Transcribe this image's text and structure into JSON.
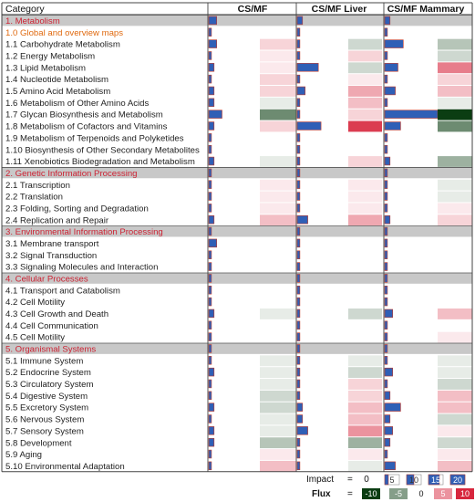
{
  "chart_data": {
    "type": "heatmap",
    "header": {
      "category": "Category",
      "groups": [
        "CS/MF",
        "CS/MF Liver",
        "CS/MF Mammary"
      ]
    },
    "rows": [
      {
        "label": "1. Metabolism",
        "section": true,
        "impact": [
          3,
          2,
          2
        ],
        "flux": [
          0,
          0,
          0
        ]
      },
      {
        "label": "1.0 Global and overview maps",
        "overview": true,
        "impact": [
          1,
          1,
          1
        ],
        "flux": [
          0,
          0,
          0
        ]
      },
      {
        "label": "1.1 Carbohydrate Metabolism",
        "impact": [
          3,
          1,
          7
        ],
        "flux": [
          2,
          -2,
          -3
        ]
      },
      {
        "label": "1.2 Energy Metabolism",
        "impact": [
          1,
          1,
          1
        ],
        "flux": [
          1,
          2,
          -2
        ]
      },
      {
        "label": "1.3 Lipid Metabolism",
        "impact": [
          2,
          8,
          5
        ],
        "flux": [
          1,
          -2,
          6
        ]
      },
      {
        "label": "1.4 Nucleotide Metabolism",
        "impact": [
          1,
          1,
          1
        ],
        "flux": [
          2,
          1,
          2
        ]
      },
      {
        "label": "1.5 Amino Acid Metabolism",
        "impact": [
          2,
          3,
          4
        ],
        "flux": [
          2,
          4,
          3
        ]
      },
      {
        "label": "1.6 Metabolism of Other Amino Acids",
        "impact": [
          2,
          1,
          1
        ],
        "flux": [
          -1,
          3,
          -1
        ]
      },
      {
        "label": "1.7 Glycan Biosynthesis and Metabolism",
        "impact": [
          5,
          1,
          20
        ],
        "flux": [
          -6,
          2,
          -10
        ]
      },
      {
        "label": "1.8 Metabolism of Cofactors and Vitamins",
        "impact": [
          2,
          9,
          6
        ],
        "flux": [
          2,
          9,
          -6
        ]
      },
      {
        "label": "1.9 Metabolism of Terpenoids and Polyketides",
        "impact": [
          1,
          1,
          1
        ],
        "flux": [
          0,
          0,
          0
        ]
      },
      {
        "label": "1.10 Biosynthesis of Other Secondary Metabolites",
        "impact": [
          1,
          1,
          1
        ],
        "flux": [
          0,
          0,
          0
        ]
      },
      {
        "label": "1.11 Xenobiotics Biodegradation and Metabolism",
        "impact": [
          2,
          1,
          2
        ],
        "flux": [
          -1,
          2,
          -4
        ]
      },
      {
        "label": "2. Genetic Information Processing",
        "section": true,
        "impact": [
          1,
          1,
          1
        ],
        "flux": [
          0,
          0,
          0
        ]
      },
      {
        "label": "2.1 Transcription",
        "impact": [
          1,
          1,
          1
        ],
        "flux": [
          1,
          1,
          -1
        ]
      },
      {
        "label": "2.2 Translation",
        "impact": [
          1,
          1,
          1
        ],
        "flux": [
          1,
          1,
          -1
        ]
      },
      {
        "label": "2.3 Folding, Sorting and Degradation",
        "impact": [
          1,
          1,
          1
        ],
        "flux": [
          1,
          1,
          1
        ]
      },
      {
        "label": "2.4 Replication and Repair",
        "impact": [
          2,
          4,
          2
        ],
        "flux": [
          3,
          4,
          2
        ]
      },
      {
        "label": "3. Environmental Information Processing",
        "section": true,
        "impact": [
          1,
          1,
          1
        ],
        "flux": [
          0,
          0,
          0
        ]
      },
      {
        "label": "3.1 Membrane transport",
        "impact": [
          3,
          1,
          1
        ],
        "flux": [
          0,
          0,
          0
        ]
      },
      {
        "label": "3.2 Signal Transduction",
        "impact": [
          1,
          1,
          1
        ],
        "flux": [
          0,
          0,
          0
        ]
      },
      {
        "label": "3.3 Signaling Molecules and Interaction",
        "impact": [
          1,
          1,
          1
        ],
        "flux": [
          0,
          0,
          0
        ]
      },
      {
        "label": "4. Cellular Processes",
        "section": true,
        "impact": [
          1,
          1,
          1
        ],
        "flux": [
          0,
          0,
          0
        ]
      },
      {
        "label": "4.1 Transport and Catabolism",
        "impact": [
          1,
          1,
          1
        ],
        "flux": [
          0,
          0,
          0
        ]
      },
      {
        "label": "4.2 Cell Motility",
        "impact": [
          1,
          1,
          1
        ],
        "flux": [
          0,
          0,
          0
        ]
      },
      {
        "label": "4.3 Cell Growth and Death",
        "impact": [
          2,
          1,
          3
        ],
        "flux": [
          -1,
          -2,
          3
        ]
      },
      {
        "label": "4.4 Cell Communication",
        "impact": [
          1,
          1,
          1
        ],
        "flux": [
          0,
          0,
          0
        ]
      },
      {
        "label": "4.5 Cell Motility",
        "impact": [
          1,
          1,
          1
        ],
        "flux": [
          0,
          0,
          1
        ]
      },
      {
        "label": "5. Organismal Systems",
        "section": true,
        "impact": [
          1,
          1,
          1
        ],
        "flux": [
          0,
          0,
          0
        ]
      },
      {
        "label": "5.1 Immune System",
        "impact": [
          1,
          1,
          1
        ],
        "flux": [
          -1,
          -1,
          -1
        ]
      },
      {
        "label": "5.2 Endocrine System",
        "impact": [
          2,
          1,
          3
        ],
        "flux": [
          -1,
          -2,
          -1
        ]
      },
      {
        "label": "5.3 Circulatory System",
        "impact": [
          1,
          1,
          1
        ],
        "flux": [
          -1,
          2,
          -2
        ]
      },
      {
        "label": "5.4 Digestive System",
        "impact": [
          1,
          1,
          2
        ],
        "flux": [
          -2,
          2,
          3
        ]
      },
      {
        "label": "5.5 Excretory System",
        "impact": [
          2,
          2,
          6
        ],
        "flux": [
          -2,
          3,
          3
        ]
      },
      {
        "label": "5.6 Nervous System",
        "impact": [
          1,
          2,
          2
        ],
        "flux": [
          -1,
          3,
          -2
        ]
      },
      {
        "label": "5.7 Sensory System",
        "impact": [
          2,
          4,
          3
        ],
        "flux": [
          -1,
          5,
          1
        ]
      },
      {
        "label": "5.8 Development",
        "impact": [
          2,
          1,
          2
        ],
        "flux": [
          -3,
          -4,
          -2
        ]
      },
      {
        "label": "5.9 Aging",
        "impact": [
          1,
          1,
          1
        ],
        "flux": [
          1,
          1,
          1
        ]
      },
      {
        "label": "5.10 Environmental Adaptation",
        "impact": [
          1,
          1,
          4
        ],
        "flux": [
          3,
          -1,
          3
        ]
      }
    ],
    "legend": {
      "impact_label": "Impact",
      "flux_label": "Flux",
      "equals": "=",
      "impact_zero": "0",
      "impact_ticks": [
        "5",
        "10",
        "15",
        "20"
      ],
      "impact_tick_values": [
        5,
        10,
        15,
        20
      ],
      "flux_ticks": [
        "-10",
        "-5",
        "0",
        "5",
        "10"
      ],
      "flux_tick_values": [
        -10,
        -5,
        0,
        5,
        10
      ]
    },
    "impact_max": 20,
    "flux_range": [
      -10,
      10
    ],
    "colors": {
      "impact_bar": "#2f5fb6",
      "impact_bar_edge": "#c0392b",
      "flux_positive": "#d7263d",
      "flux_negative": "#0b3d12",
      "section_fill": "#c8c8c8",
      "section_text": "#cc2233",
      "overview_text": "#e06a10",
      "text": "#222222"
    }
  }
}
